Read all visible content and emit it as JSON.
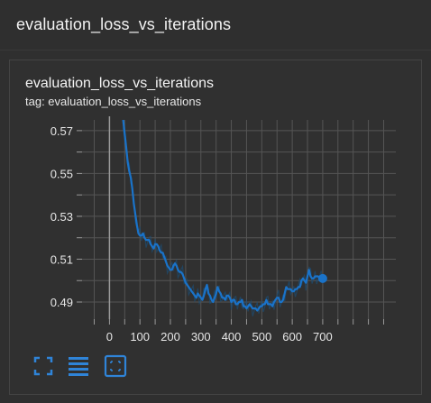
{
  "header": {
    "title": "evaluation_loss_vs_iterations"
  },
  "card": {
    "title": "evaluation_loss_vs_iterations",
    "tag": "tag: evaluation_loss_vs_iterations"
  },
  "colors": {
    "line": "#1a73c9",
    "smoothed_raw": "#1d4d73",
    "grid": "#555555",
    "zero_axis": "#9a9a9a"
  },
  "toolbar": {
    "buttons": [
      {
        "name": "fullscreen-icon"
      },
      {
        "name": "legend-list-icon"
      },
      {
        "name": "fit-domain-icon"
      }
    ]
  },
  "chart_data": {
    "type": "line",
    "title": "evaluation_loss_vs_iterations",
    "xlabel": "",
    "ylabel": "",
    "xlim": [
      -90,
      940
    ],
    "ylim": [
      0.482,
      0.575
    ],
    "x_ticks": [
      0,
      100,
      200,
      300,
      400,
      500,
      600,
      700
    ],
    "y_ticks": [
      0.49,
      0.51,
      0.53,
      0.55,
      0.57
    ],
    "y_tick_labels": [
      "0.49",
      "0.51",
      "0.53",
      "0.55",
      "0.57"
    ],
    "grid": true,
    "series": [
      {
        "x": [
          45,
          55,
          60,
          65,
          70,
          75,
          80,
          85,
          90,
          95,
          100,
          105,
          110,
          115,
          120,
          125,
          130,
          135,
          140,
          145,
          150,
          155,
          160,
          165,
          170,
          175,
          180,
          185,
          190,
          195,
          200,
          205,
          210,
          215,
          220,
          225,
          230,
          235,
          240,
          245,
          250,
          255,
          260,
          265,
          270,
          275,
          280,
          285,
          290,
          295,
          300,
          305,
          310,
          315,
          320,
          325,
          330,
          335,
          340,
          345,
          350,
          355,
          360,
          365,
          370,
          375,
          380,
          385,
          390,
          395,
          400,
          405,
          410,
          415,
          420,
          425,
          430,
          435,
          440,
          445,
          450,
          455,
          460,
          465,
          470,
          475,
          480,
          485,
          490,
          495,
          500,
          505,
          510,
          515,
          520,
          525,
          530,
          535,
          540,
          545,
          550,
          555,
          560,
          565,
          570,
          575,
          580,
          585,
          590,
          595,
          600,
          605,
          610,
          615,
          620,
          625,
          630,
          635,
          640,
          645,
          650,
          655,
          660,
          665,
          670,
          675,
          680,
          685,
          690,
          695,
          700
        ],
        "values": [
          0.575,
          0.562,
          0.555,
          0.551,
          0.548,
          0.543,
          0.536,
          0.531,
          0.526,
          0.522,
          0.521,
          0.521,
          0.522,
          0.52,
          0.519,
          0.519,
          0.519,
          0.517,
          0.516,
          0.515,
          0.517,
          0.517,
          0.516,
          0.514,
          0.513,
          0.513,
          0.511,
          0.509,
          0.507,
          0.506,
          0.505,
          0.505,
          0.507,
          0.508,
          0.507,
          0.505,
          0.504,
          0.504,
          0.503,
          0.501,
          0.499,
          0.498,
          0.497,
          0.496,
          0.495,
          0.494,
          0.493,
          0.492,
          0.494,
          0.493,
          0.492,
          0.491,
          0.493,
          0.496,
          0.498,
          0.494,
          0.493,
          0.491,
          0.49,
          0.492,
          0.494,
          0.497,
          0.495,
          0.494,
          0.492,
          0.492,
          0.491,
          0.493,
          0.493,
          0.492,
          0.49,
          0.491,
          0.491,
          0.489,
          0.489,
          0.49,
          0.49,
          0.491,
          0.488,
          0.488,
          0.487,
          0.488,
          0.489,
          0.488,
          0.487,
          0.487,
          0.487,
          0.486,
          0.487,
          0.488,
          0.488,
          0.489,
          0.489,
          0.491,
          0.489,
          0.489,
          0.489,
          0.488,
          0.49,
          0.491,
          0.492,
          0.492,
          0.49,
          0.49,
          0.491,
          0.494,
          0.497,
          0.496,
          0.496,
          0.496,
          0.495,
          0.495,
          0.496,
          0.496,
          0.497,
          0.497,
          0.5,
          0.501,
          0.5,
          0.499,
          0.502,
          0.505,
          0.502,
          0.501,
          0.501,
          0.502,
          0.502,
          0.502,
          0.501,
          0.501,
          0.501
        ]
      }
    ]
  }
}
